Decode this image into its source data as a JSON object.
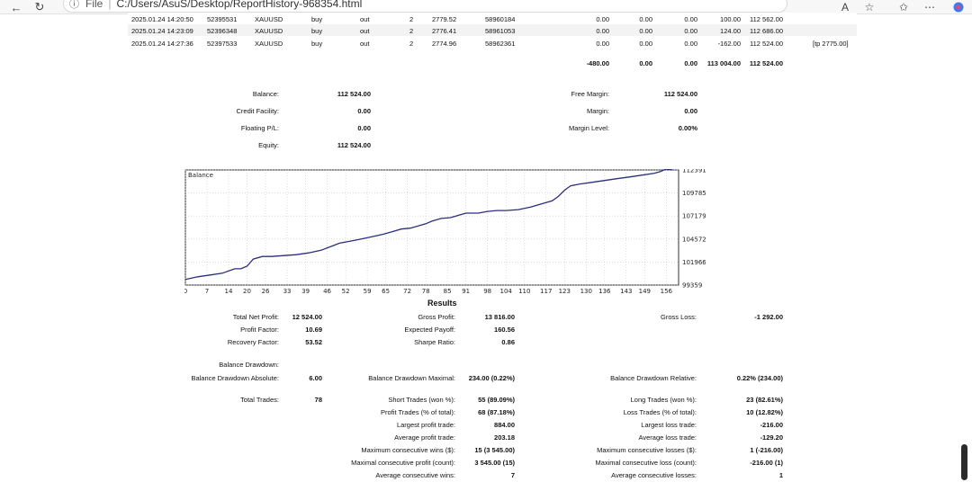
{
  "browser": {
    "file_label": "File",
    "url": "C:/Users/AsuS/Desktop/ReportHistory-968354.html"
  },
  "trades": [
    {
      "time": "2025.01.24 14:20:50",
      "deal": "52395531",
      "symbol": "XAUUSD",
      "type": "buy",
      "direction": "out",
      "volume": "2",
      "price": "2779.52",
      "order": "58960184",
      "commission": "0.00",
      "fee": "0.00",
      "swap": "0.00",
      "profit": "100.00",
      "balance": "112 562.00",
      "comment": ""
    },
    {
      "time": "2025.01.24 14:23:09",
      "deal": "52396348",
      "symbol": "XAUUSD",
      "type": "buy",
      "direction": "out",
      "volume": "2",
      "price": "2776.41",
      "order": "58961053",
      "commission": "0.00",
      "fee": "0.00",
      "swap": "0.00",
      "profit": "124.00",
      "balance": "112 686.00",
      "comment": ""
    },
    {
      "time": "2025.01.24 14:27:36",
      "deal": "52397533",
      "symbol": "XAUUSD",
      "type": "buy",
      "direction": "out",
      "volume": "2",
      "price": "2774.96",
      "order": "58962361",
      "commission": "0.00",
      "fee": "0.00",
      "swap": "0.00",
      "profit": "-162.00",
      "balance": "112 524.00",
      "comment": "[tp 2775.00]"
    }
  ],
  "totals": {
    "commission": "-480.00",
    "fee": "0.00",
    "swap": "0.00",
    "profit": "113 004.00",
    "balance": "112 524.00"
  },
  "account": {
    "balance_label": "Balance:",
    "balance": "112 524.00",
    "credit_label": "Credit Facility:",
    "credit": "0.00",
    "floating_label": "Floating P/L:",
    "floating": "0.00",
    "equity_label": "Equity:",
    "equity": "112 524.00",
    "free_margin_label": "Free Margin:",
    "free_margin": "112 524.00",
    "margin_label": "Margin:",
    "margin": "0.00",
    "margin_level_label": "Margin Level:",
    "margin_level": "0.00%"
  },
  "chart_data": {
    "type": "line",
    "title": "Balance",
    "x_ticks": [
      0,
      7,
      14,
      20,
      26,
      33,
      39,
      46,
      52,
      59,
      65,
      72,
      78,
      85,
      91,
      98,
      104,
      110,
      117,
      123,
      130,
      136,
      143,
      149,
      156
    ],
    "y_ticks": [
      99359,
      101966,
      104572,
      107179,
      109785,
      112391
    ],
    "xlim": [
      0,
      160
    ],
    "ylim": [
      99359,
      112391
    ],
    "grid": true,
    "series": [
      {
        "x": [
          0,
          4,
          8,
          12,
          16,
          18,
          20,
          22,
          25,
          28,
          32,
          36,
          40,
          44,
          47,
          50,
          53,
          56,
          60,
          64,
          67,
          70,
          73,
          76,
          78,
          80,
          83,
          86,
          89,
          91,
          95,
          98,
          101,
          104,
          108,
          112,
          116,
          119,
          121,
          123,
          125,
          128,
          132,
          136,
          140,
          144,
          148,
          152,
          154,
          156,
          158
        ],
        "values": [
          100000,
          100300,
          100500,
          100700,
          101200,
          101200,
          101500,
          102300,
          102600,
          102600,
          102700,
          102800,
          103000,
          103300,
          103700,
          104100,
          104300,
          104500,
          104800,
          105100,
          105400,
          105700,
          105800,
          106100,
          106300,
          106600,
          106900,
          107000,
          107300,
          107500,
          107500,
          107700,
          107800,
          107800,
          107900,
          108200,
          108600,
          108900,
          109400,
          110100,
          110600,
          110800,
          111000,
          111200,
          111400,
          111600,
          111800,
          112000,
          112200,
          112500,
          112400
        ]
      }
    ]
  },
  "results": {
    "title": "Results",
    "net_profit_label": "Total Net Profit:",
    "net_profit": "12 524.00",
    "gross_profit_label": "Gross Profit:",
    "gross_profit": "13 816.00",
    "gross_loss_label": "Gross Loss:",
    "gross_loss": "-1 292.00",
    "profit_factor_label": "Profit Factor:",
    "profit_factor": "10.69",
    "expected_payoff_label": "Expected Payoff:",
    "expected_payoff": "160.56",
    "recovery_factor_label": "Recovery Factor:",
    "recovery_factor": "53.52",
    "sharpe_label": "Sharpe Ratio:",
    "sharpe": "0.86",
    "balance_drawdown_label": "Balance Drawdown:",
    "dd_absolute_label": "Balance Drawdown Absolute:",
    "dd_absolute": "6.00",
    "dd_maximal_label": "Balance Drawdown Maximal:",
    "dd_maximal": "234.00 (0.22%)",
    "dd_relative_label": "Balance Drawdown Relative:",
    "dd_relative": "0.22% (234.00)",
    "total_trades_label": "Total Trades:",
    "total_trades": "78",
    "short_trades_label": "Short Trades (won %):",
    "short_trades": "55 (89.09%)",
    "long_trades_label": "Long Trades (won %):",
    "long_trades": "23 (82.61%)",
    "profit_trades_label": "Profit Trades (% of total):",
    "profit_trades": "68 (87.18%)",
    "loss_trades_label": "Loss Trades (% of total):",
    "loss_trades": "10 (12.82%)",
    "largest_profit_label": "Largest profit trade:",
    "largest_profit": "884.00",
    "largest_loss_label": "Largest loss trade:",
    "largest_loss": "-216.00",
    "avg_profit_label": "Average profit trade:",
    "avg_profit": "203.18",
    "avg_loss_label": "Average loss trade:",
    "avg_loss": "-129.20",
    "max_cons_wins_label": "Maximum consecutive wins ($):",
    "max_cons_wins": "15 (3 545.00)",
    "max_cons_losses_label": "Maximum consecutive losses ($):",
    "max_cons_losses": "1 (-216.00)",
    "maximal_cons_profit_label": "Maximal consecutive profit (count):",
    "maximal_cons_profit": "3 545.00 (15)",
    "maximal_cons_loss_label": "Maximal consecutive loss (count):",
    "maximal_cons_loss": "-216.00 (1)",
    "avg_cons_wins_label": "Average consecutive wins:",
    "avg_cons_wins": "7",
    "avg_cons_losses_label": "Average consecutive losses:",
    "avg_cons_losses": "1"
  },
  "colors": {
    "line": "#2b2f7a",
    "grid": "#c8c8c8",
    "row_alt": "#f3f3f3"
  }
}
